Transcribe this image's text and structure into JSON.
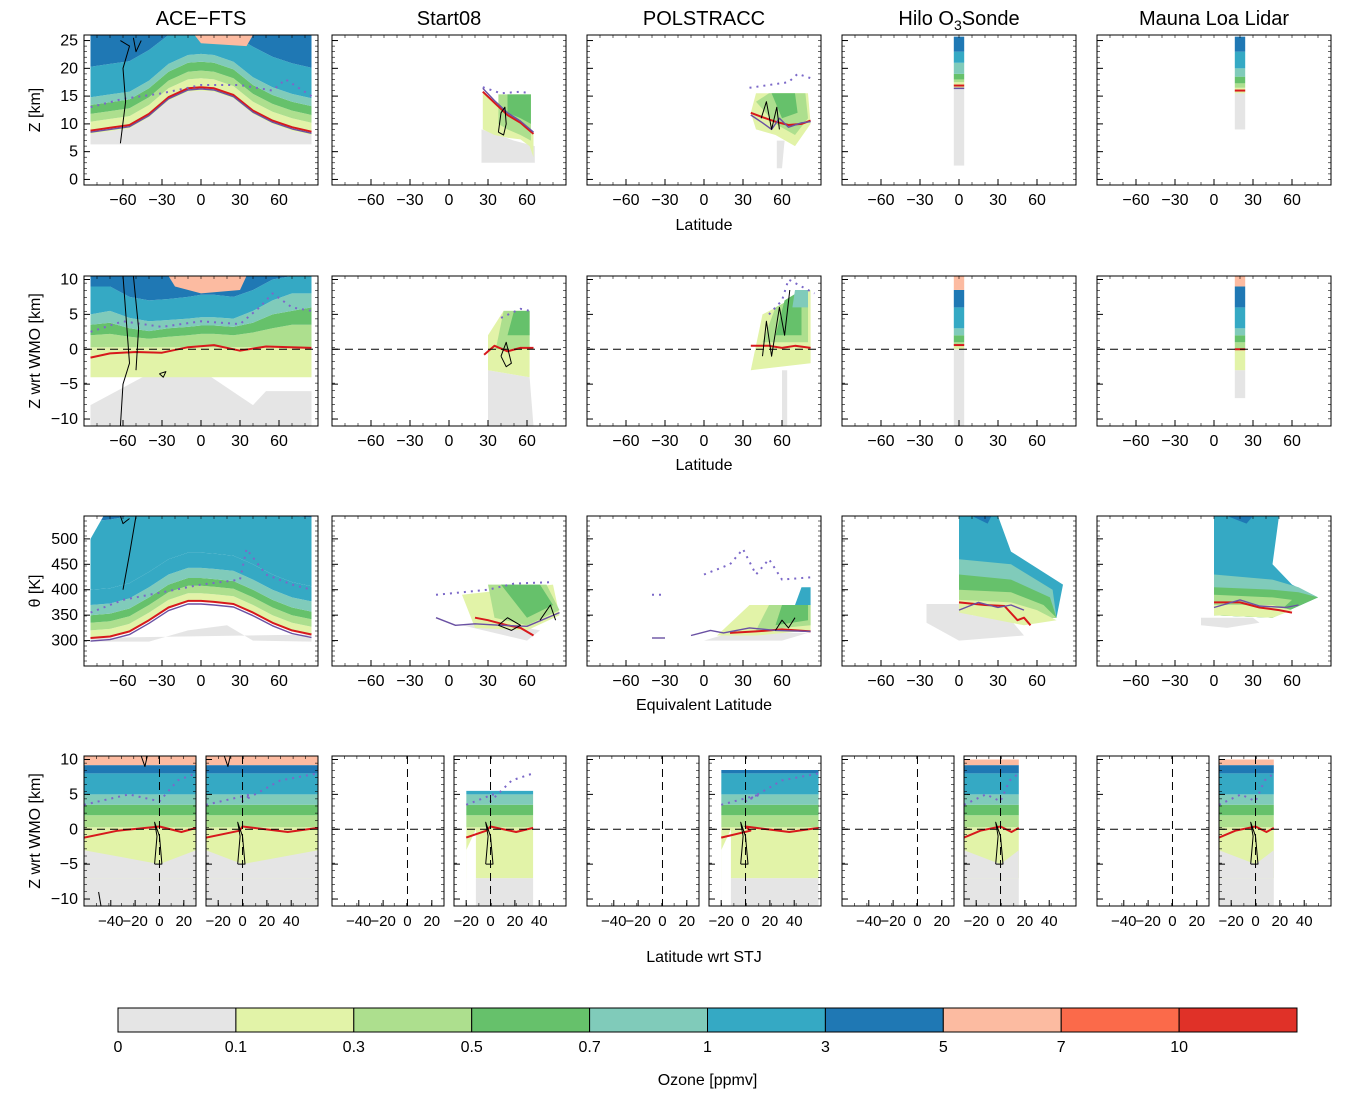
{
  "figure": {
    "columns": [
      "ACE−FTS",
      "Start08",
      "POLSTRACC",
      "Hilo O3Sonde",
      "Mauna Loa Lidar"
    ],
    "column_title_parts": {
      "hilo_prefix": "Hilo O",
      "hilo_sub": "3",
      "hilo_suffix": "Sonde"
    },
    "row_ylabels": [
      "Z [km]",
      "Z wrt WMO [km]",
      "θ [K]",
      "Z wrt WMO [km]"
    ],
    "row_xlabels": [
      "Latitude",
      "Latitude",
      "Equivalent Latitude",
      "Latitude wrt STJ"
    ],
    "colorbar_label": "Ozone [ppmv]",
    "colors": {
      "sub_01": "#e5e5e5",
      "01_03": "#e2f3a8",
      "03_05": "#addf8e",
      "05_07": "#66c16b",
      "07_1": "#80cbba",
      "1_3": "#35a9c4",
      "3_5": "#1f78b4",
      "5_7": "#fcbba1",
      "7_10": "#fb6a4a",
      "10_plus": "#e03128",
      "tropopause_red": "#d7191c",
      "tropopause_purple": "#6a51a3",
      "dotted_purple": "#7b68c8",
      "jet_contour": "#000000"
    }
  },
  "chart_data": [
    {
      "type": "heatmap",
      "row": "altitude",
      "ylabel": "Z [km]",
      "xlabel": "Latitude",
      "xlim": [
        -90,
        90
      ],
      "ylim": [
        -1,
        26
      ],
      "xticks": [
        -60,
        -30,
        0,
        30,
        60
      ],
      "yticks": [
        0,
        5,
        10,
        15,
        20,
        25
      ],
      "panels": [
        {
          "title": "ACE−FTS",
          "tropopause_red": [
            [
              -85,
              8.8
            ],
            [
              -60,
              9.6
            ],
            [
              -30,
              12.5
            ],
            [
              -15,
              15.3
            ],
            [
              0,
              16.5
            ],
            [
              15,
              16.6
            ],
            [
              30,
              15.5
            ],
            [
              45,
              12.2
            ],
            [
              60,
              10.3
            ],
            [
              85,
              8.6
            ]
          ],
          "tropopause_purple": [
            [
              -85,
              8.4
            ],
            [
              -60,
              9.3
            ],
            [
              -30,
              12.4
            ],
            [
              -15,
              15.0
            ],
            [
              0,
              16.1
            ],
            [
              15,
              16.2
            ],
            [
              30,
              15.2
            ],
            [
              45,
              11.9
            ],
            [
              60,
              9.9
            ],
            [
              85,
              8.3
            ]
          ]
        },
        {
          "title": "Start08",
          "tropopause_red": [
            [
              26,
              15.8
            ],
            [
              35,
              13.8
            ],
            [
              45,
              11.6
            ],
            [
              55,
              10.2
            ],
            [
              65,
              8.2
            ]
          ],
          "tropopause_purple": [
            [
              26,
              16.2
            ],
            [
              35,
              14.0
            ],
            [
              45,
              11.8
            ],
            [
              55,
              10.2
            ],
            [
              65,
              8.4
            ]
          ]
        },
        {
          "title": "POLSTRACC",
          "tropopause_red": [
            [
              36,
              12.0
            ],
            [
              45,
              11.2
            ],
            [
              55,
              10.4
            ],
            [
              65,
              9.8
            ],
            [
              75,
              10.0
            ],
            [
              82,
              10.6
            ]
          ],
          "tropopause_purple": [
            [
              36,
              11.6
            ],
            [
              45,
              10.2
            ],
            [
              55,
              9.4
            ],
            [
              65,
              9.8
            ],
            [
              75,
              10.2
            ],
            [
              82,
              10.4
            ]
          ]
        },
        {
          "title": "Hilo O3Sonde",
          "tropopause_red": [
            [
              -4,
              16.9
            ],
            [
              4,
              16.9
            ]
          ],
          "tropopause_purple": [
            [
              -4,
              16.5
            ],
            [
              4,
              16.5
            ]
          ]
        },
        {
          "title": "Mauna Loa Lidar",
          "tropopause_red": [
            [
              16,
              16.0
            ],
            [
              24,
              16.0
            ]
          ],
          "tropopause_purple": [
            [
              16,
              15.6
            ],
            [
              24,
              15.6
            ]
          ]
        }
      ]
    },
    {
      "type": "heatmap",
      "row": "altitude_wrt_tropopause",
      "ylabel": "Z wrt WMO [km]",
      "xlabel": "Latitude",
      "xlim": [
        -90,
        90
      ],
      "ylim": [
        -11,
        10.5
      ],
      "xticks": [
        -60,
        -30,
        0,
        30,
        60
      ],
      "yticks": [
        -10,
        -5,
        0,
        5,
        10
      ],
      "reference_line": 0
    },
    {
      "type": "heatmap",
      "row": "theta",
      "ylabel": "θ [K]",
      "xlabel": "Equivalent Latitude",
      "xlim": [
        -90,
        90
      ],
      "ylim": [
        250,
        545
      ],
      "xticks": [
        -60,
        -30,
        0,
        30,
        60
      ],
      "yticks": [
        300,
        350,
        400,
        450,
        500
      ]
    },
    {
      "type": "heatmap",
      "row": "altitude_wrt_tropopause_jet_relative",
      "ylabel": "Z wrt WMO [km]",
      "xlabel": "Latitude wrt STJ",
      "subpanels": [
        "southern_hemisphere",
        "northern_hemisphere"
      ],
      "xlim_left": [
        -62,
        30
      ],
      "xlim_right": [
        -30,
        62
      ],
      "xticks_left": [
        -40,
        -20,
        0,
        20
      ],
      "xticks_right": [
        -20,
        0,
        20,
        40
      ],
      "ylim": [
        -11,
        10.5
      ],
      "yticks": [
        -10,
        -5,
        0,
        5,
        10
      ],
      "reference_line": 0
    },
    {
      "type": "colorbar",
      "label": "Ozone [ppmv]",
      "boundaries": [
        "0",
        "0.1",
        "0.3",
        "0.5",
        "0.7",
        "1",
        "3",
        "5",
        "7",
        "10"
      ],
      "bins": [
        "<0.1",
        "0.1–0.3",
        "0.3–0.5",
        "0.5–0.7",
        "0.7–1",
        "1–3",
        "3–5",
        "5–7",
        "7–10",
        ">10"
      ]
    }
  ]
}
